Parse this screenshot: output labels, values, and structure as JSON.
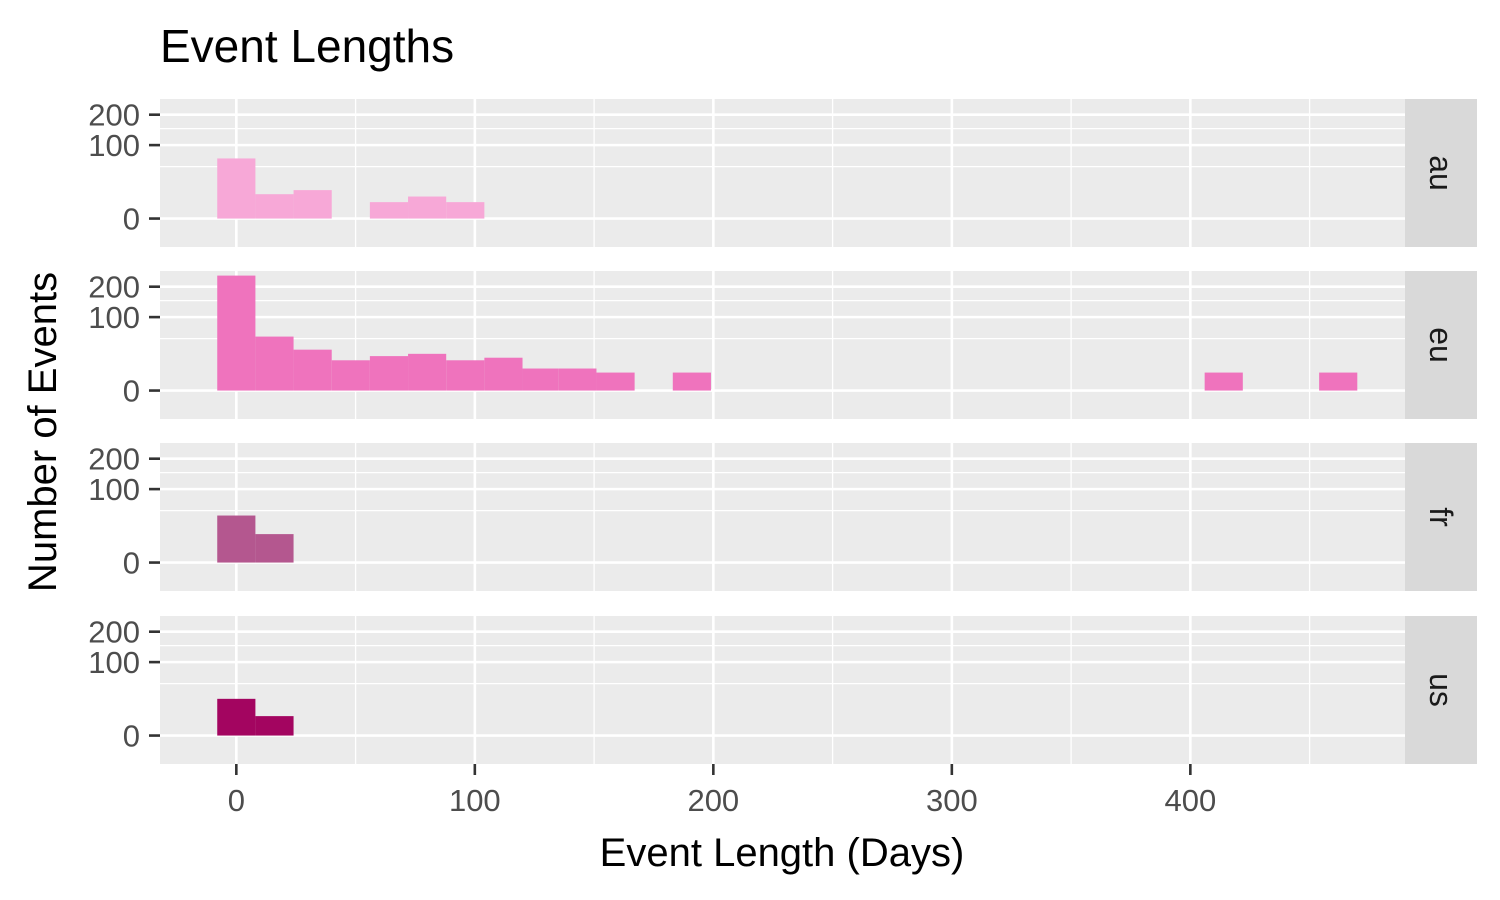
{
  "chart_data": {
    "type": "histogram-facet",
    "title": "Event Lengths",
    "xlabel": "Event Length (Days)",
    "ylabel": "Number of Events",
    "x_ticks": [
      0,
      100,
      200,
      300,
      400
    ],
    "x_tick_labels": [
      "0",
      "100",
      "200",
      "300",
      "400"
    ],
    "y_ticks": [
      0,
      100,
      200
    ],
    "y_tick_labels": [
      "0",
      "100",
      "200"
    ],
    "xlim": [
      -32,
      490
    ],
    "ylim": [
      -15,
      265
    ],
    "y_scale": "sqrt",
    "grid": true,
    "bins": [
      [
        -8,
        8
      ],
      [
        8,
        24
      ],
      [
        24,
        40
      ],
      [
        40,
        56
      ],
      [
        56,
        72
      ],
      [
        72,
        88
      ],
      [
        88,
        104
      ],
      [
        104,
        120
      ],
      [
        120,
        135
      ],
      [
        135,
        151
      ],
      [
        151,
        167
      ],
      [
        167,
        183
      ],
      [
        183,
        199
      ],
      [
        199,
        215
      ],
      [
        215,
        231
      ],
      [
        231,
        247
      ],
      [
        247,
        263
      ],
      [
        263,
        279
      ],
      [
        279,
        295
      ],
      [
        295,
        311
      ],
      [
        311,
        327
      ],
      [
        327,
        343
      ],
      [
        343,
        359
      ],
      [
        359,
        375
      ],
      [
        375,
        391
      ],
      [
        391,
        406
      ],
      [
        406,
        422
      ],
      [
        422,
        438
      ],
      [
        438,
        454
      ],
      [
        454,
        470
      ]
    ],
    "panels": [
      {
        "label": "au",
        "color": "#f7a8d7",
        "counts": [
          67,
          11,
          15,
          0,
          5,
          9,
          5,
          0,
          0,
          0,
          0,
          0,
          0,
          0,
          0,
          0,
          0,
          0,
          0,
          0,
          0,
          0,
          0,
          0,
          0,
          0,
          0,
          0,
          0,
          0
        ]
      },
      {
        "label": "eu",
        "color": "#ef73bd",
        "counts": [
          245,
          54,
          31,
          17,
          22,
          25,
          17,
          20,
          9,
          9,
          6,
          0,
          6,
          0,
          0,
          0,
          0,
          0,
          0,
          0,
          0,
          0,
          0,
          0,
          0,
          0,
          6,
          0,
          0,
          6
        ]
      },
      {
        "label": "fr",
        "color": "#b4578f",
        "counts": [
          41,
          15,
          0,
          0,
          0,
          0,
          0,
          0,
          0,
          0,
          0,
          0,
          0,
          0,
          0,
          0,
          0,
          0,
          0,
          0,
          0,
          0,
          0,
          0,
          0,
          0,
          0,
          0,
          0,
          0
        ]
      },
      {
        "label": "us",
        "color": "#a30560",
        "counts": [
          25,
          7,
          0,
          0,
          0,
          0,
          0,
          0,
          0,
          0,
          0,
          0,
          0,
          0,
          0,
          0,
          0,
          0,
          0,
          0,
          0,
          0,
          0,
          0,
          0,
          0,
          0,
          0,
          0,
          0
        ]
      }
    ]
  }
}
